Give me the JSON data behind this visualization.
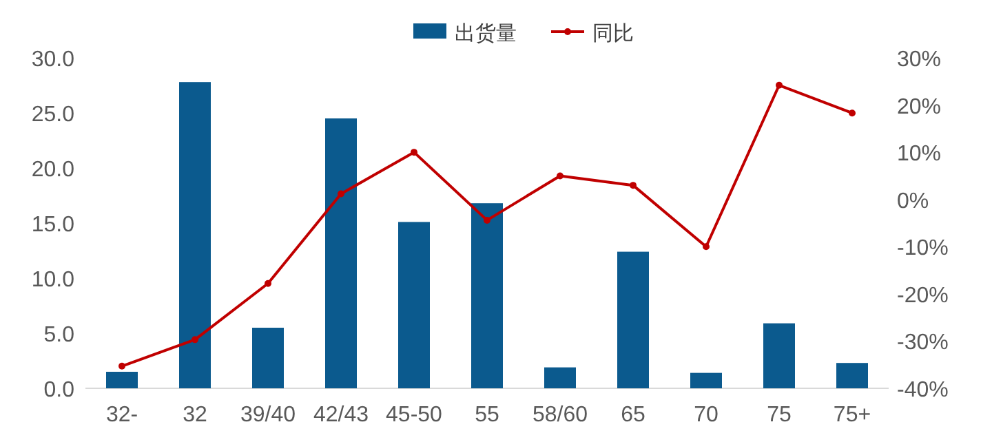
{
  "chart_data": {
    "type": "bar",
    "categories": [
      "32-",
      "32",
      "39/40",
      "42/43",
      "45-50",
      "55",
      "58/60",
      "65",
      "70",
      "75",
      "75+"
    ],
    "series": [
      {
        "name": "出货量",
        "color": "#0b5a8e",
        "values": [
          1.5,
          27.8,
          5.5,
          24.5,
          15.1,
          16.8,
          1.9,
          12.4,
          1.4,
          5.9,
          2.3
        ]
      },
      {
        "name": "同比",
        "type": "line",
        "axis": "y2",
        "color": "#c00000",
        "marker": "circle",
        "values": [
          -35.3,
          -29.7,
          -17.8,
          1.2,
          10,
          -4.4,
          5,
          3,
          -10,
          24.2,
          18.3
        ]
      }
    ],
    "ylim": [
      0,
      30
    ],
    "yticks": [
      {
        "value": 0,
        "label": "0.0"
      },
      {
        "value": 5,
        "label": "5.0"
      },
      {
        "value": 10,
        "label": "10.0"
      },
      {
        "value": 15,
        "label": "15.0"
      },
      {
        "value": 20,
        "label": "20.0"
      },
      {
        "value": 25,
        "label": "25.0"
      },
      {
        "value": 30,
        "label": "30.0"
      }
    ],
    "y2lim": [
      -40,
      30
    ],
    "y2ticks": [
      {
        "value": -40,
        "label": "-40%"
      },
      {
        "value": -30,
        "label": "-30%"
      },
      {
        "value": -20,
        "label": "-20%"
      },
      {
        "value": -10,
        "label": "-10%"
      },
      {
        "value": 0,
        "label": "0%"
      },
      {
        "value": 10,
        "label": "10%"
      },
      {
        "value": 20,
        "label": "20%"
      },
      {
        "value": 30,
        "label": "30%"
      }
    ],
    "legend": "top",
    "grid": false
  }
}
